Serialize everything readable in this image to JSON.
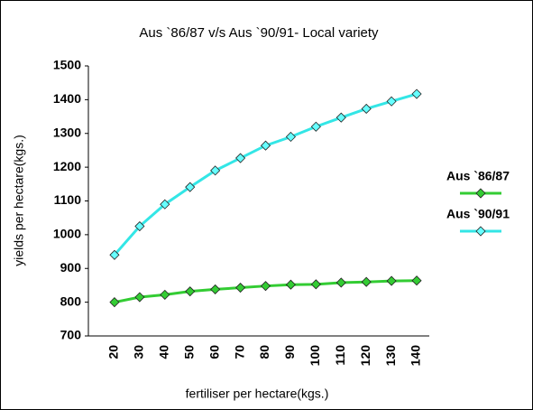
{
  "chart_data": {
    "type": "line",
    "title": "Aus `86/87 v/s Aus `90/91- Local variety",
    "x_label": "fertiliser per hectare(kgs.)",
    "y_label": "yields per hectare(kgs.)",
    "categories": [
      "20",
      "30",
      "40",
      "50",
      "60",
      "70",
      "80",
      "90",
      "100",
      "110",
      "120",
      "130",
      "140"
    ],
    "series": [
      {
        "name": "Aus `86/87",
        "color": "#33cc33",
        "marker_color": "#33cc33",
        "values": [
          800,
          815,
          822,
          832,
          838,
          843,
          848,
          852,
          853,
          858,
          860,
          863,
          864
        ]
      },
      {
        "name": "Aus `90/91",
        "color": "#33e6e6",
        "marker_color": "#66ffff",
        "values": [
          940,
          1025,
          1090,
          1141,
          1190,
          1227,
          1264,
          1290,
          1320,
          1347,
          1373,
          1395,
          1417
        ]
      }
    ],
    "ylim": [
      700,
      1500
    ],
    "yticks": [
      700,
      800,
      900,
      1000,
      1100,
      1200,
      1300,
      1400,
      1500
    ],
    "grid": false,
    "legend": "right"
  }
}
